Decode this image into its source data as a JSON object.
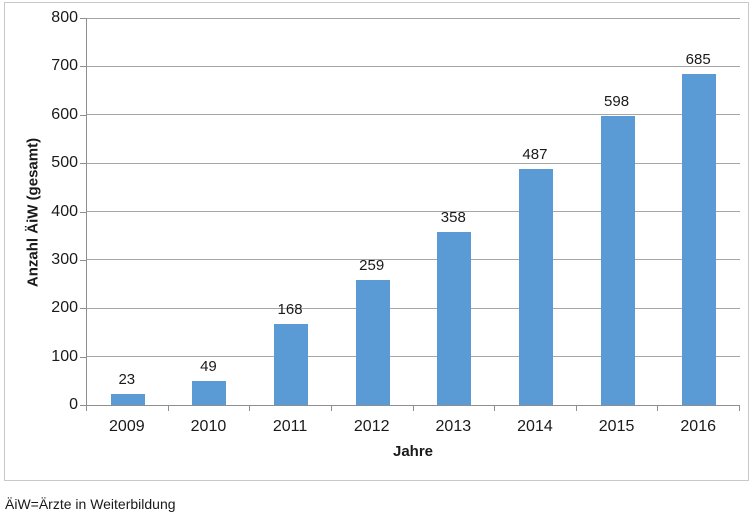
{
  "chart_data": {
    "type": "bar",
    "title": "",
    "categories": [
      "2009",
      "2010",
      "2011",
      "2012",
      "2013",
      "2014",
      "2015",
      "2016"
    ],
    "values": [
      23,
      49,
      168,
      259,
      358,
      487,
      598,
      685
    ],
    "xlabel": "Jahre",
    "ylabel": "Anzahl ÄiW (gesamt)",
    "ylim": [
      0,
      800
    ],
    "yticks": [
      0,
      100,
      200,
      300,
      400,
      500,
      600,
      700,
      800
    ],
    "grid": true,
    "legend": "none",
    "data_labels": true,
    "bar_color": "#5B9BD5"
  },
  "footnote": "ÄiW=Ärzte in Weiterbildung",
  "colors": {
    "bar": "#5B9BD5",
    "gridline": "#A6A6A6",
    "axis": "#8F8F8F",
    "frame_border": "#C9C9C9",
    "text": "#1A1A1A"
  }
}
